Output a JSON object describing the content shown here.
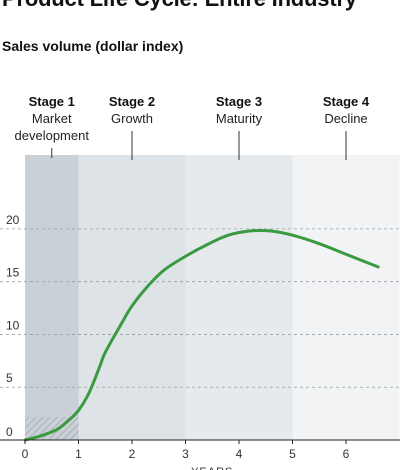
{
  "title": "Product Life Cycle: Entire Industry",
  "subtitle": "Sales volume (dollar index)",
  "chart_data": {
    "type": "line",
    "title": "Product Life Cycle: Entire Industry",
    "ylabel": "Sales volume (dollar index)",
    "xlabel": "YEARS",
    "xlim": [
      0,
      7
    ],
    "ylim": [
      0,
      27
    ],
    "x_ticks": [
      0,
      1,
      2,
      3,
      4,
      5,
      6
    ],
    "y_ticks": [
      0,
      5,
      10,
      15,
      20
    ],
    "grid": "horizontal dashed",
    "stages": [
      {
        "name": "Stage 1",
        "desc": [
          "Market",
          "development"
        ],
        "start": 0,
        "end": 1,
        "color": "#c9d1d7"
      },
      {
        "name": "Stage 2",
        "desc": [
          "Growth"
        ],
        "start": 1,
        "end": 3,
        "color": "#dde3e7"
      },
      {
        "name": "Stage 3",
        "desc": [
          "Maturity"
        ],
        "start": 3,
        "end": 5,
        "color": "#e6eaed"
      },
      {
        "name": "Stage 4",
        "desc": [
          "Decline"
        ],
        "start": 5,
        "end": 7,
        "color": "#f1f3f5"
      }
    ],
    "hatched_region": {
      "x": [
        0,
        1
      ],
      "y": [
        0,
        2.2
      ]
    },
    "series": [
      {
        "color": "#3a9a3f",
        "x": [
          0,
          0.3,
          0.6,
          0.8,
          1.0,
          1.2,
          1.4,
          1.5,
          1.8,
          2.0,
          2.3,
          2.6,
          3.0,
          3.4,
          3.8,
          4.2,
          4.6,
          5.0,
          5.5,
          6.0,
          6.6
        ],
        "y": [
          0,
          0.4,
          1.0,
          1.8,
          2.8,
          4.5,
          7.0,
          8.3,
          11.0,
          12.7,
          14.6,
          16.1,
          17.4,
          18.5,
          19.4,
          19.8,
          19.8,
          19.4,
          18.6,
          17.6,
          16.4
        ]
      }
    ]
  }
}
